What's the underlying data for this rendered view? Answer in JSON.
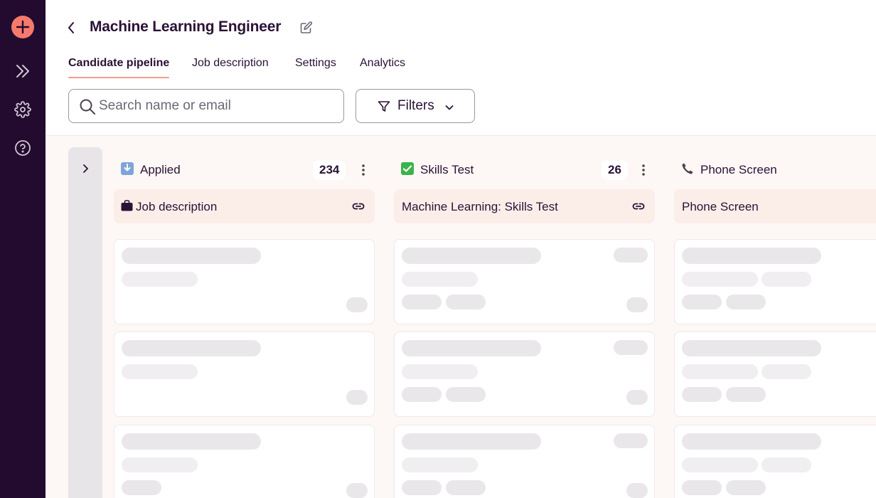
{
  "page": {
    "title": "Machine Learning Engineer"
  },
  "tabs": [
    {
      "label": "Candidate pipeline",
      "active": true
    },
    {
      "label": "Job description",
      "active": false
    },
    {
      "label": "Settings",
      "active": false
    },
    {
      "label": "Analytics",
      "active": false
    }
  ],
  "search": {
    "placeholder": "Search name or email",
    "value": ""
  },
  "filters": {
    "label": "Filters"
  },
  "sidebar": {
    "icons": [
      "add-icon",
      "expand-icon",
      "gear-icon",
      "help-icon"
    ]
  },
  "columns": [
    {
      "title": "Applied",
      "icon": "inbox-tray-icon",
      "count": "234",
      "link_label": "Job description"
    },
    {
      "title": "Skills Test",
      "icon": "check-box-icon",
      "count": "26",
      "link_label": "Machine Learning: Skills Test"
    },
    {
      "title": "Phone Screen",
      "icon": "telephone-icon",
      "count": "",
      "link_label": "Phone Screen"
    }
  ],
  "colors": {
    "sidebar_bg": "#230b2f",
    "accent": "#f67a6b",
    "tab_underline": "#f49c8d",
    "board_bg": "#fdf7f5",
    "link_bar_bg": "#fbeee9",
    "skeleton": "#e9e7ea"
  }
}
